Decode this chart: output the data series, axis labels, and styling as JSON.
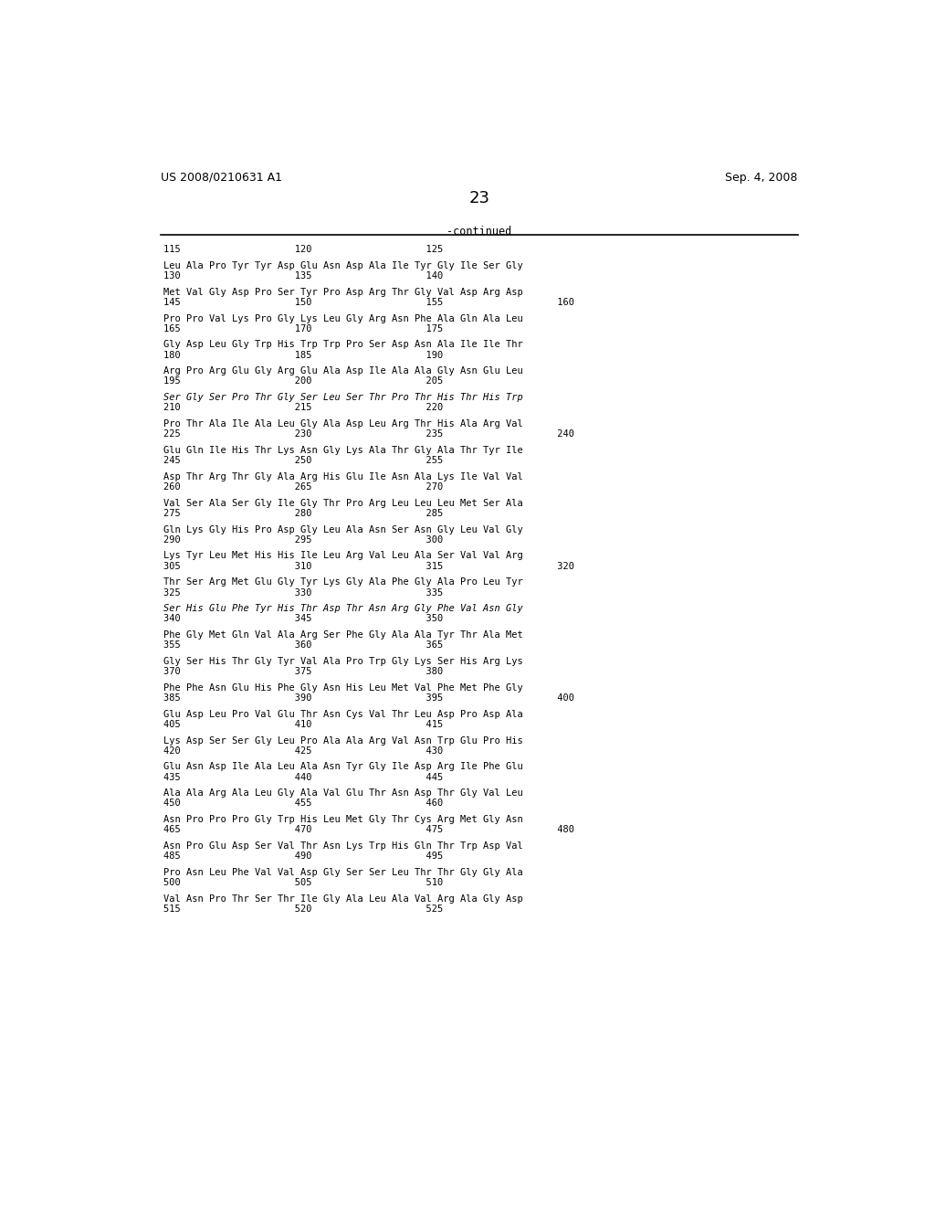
{
  "header_left": "US 2008/0210631 A1",
  "header_right": "Sep. 4, 2008",
  "page_number": "23",
  "continued_label": "-continued",
  "background_color": "#ffffff",
  "text_color": "#000000",
  "font_size": 7.5,
  "mono_font": "DejaVu Sans Mono",
  "content_blocks": [
    {
      "seq": "115                    120                    125",
      "num": null
    },
    {
      "seq": "Leu Ala Pro Tyr Tyr Asp Glu Asn Asp Ala Ile Tyr Gly Ile Ser Gly",
      "num": "130                    135                    140"
    },
    {
      "seq": "Met Val Gly Asp Pro Ser Tyr Pro Asp Arg Thr Gly Val Asp Arg Asp",
      "num": "145                    150                    155                    160"
    },
    {
      "seq": "Pro Pro Val Lys Pro Gly Lys Leu Gly Arg Asn Phe Ala Gln Ala Leu",
      "num": "165                    170                    175"
    },
    {
      "seq": "Gly Asp Leu Gly Trp His Trp Trp Pro Ser Asp Asn Ala Ile Ile Thr",
      "num": "180                    185                    190"
    },
    {
      "seq": "Arg Pro Arg Glu Gly Arg Glu Ala Asp Ile Ala Ala Gly Asn Glu Leu",
      "num": "195                    200                    205"
    },
    {
      "seq": "Ser Gly Ser Pro Thr Gly Ser Leu Ser Thr Pro Thr His Thr His Trp",
      "num": "210                    215                    220",
      "italic": true
    },
    {
      "seq": "Pro Thr Ala Ile Ala Leu Gly Ala Asp Leu Arg Thr His Ala Arg Val",
      "num": "225                    230                    235                    240"
    },
    {
      "seq": "Glu Gln Ile His Thr Lys Asn Gly Lys Ala Thr Gly Ala Thr Tyr Ile",
      "num": "245                    250                    255"
    },
    {
      "seq": "Asp Thr Arg Thr Gly Ala Arg His Glu Ile Asn Ala Lys Ile Val Val",
      "num": "260                    265                    270"
    },
    {
      "seq": "Val Ser Ala Ser Gly Ile Gly Thr Pro Arg Leu Leu Leu Met Ser Ala",
      "num": "275                    280                    285"
    },
    {
      "seq": "Gln Lys Gly His Pro Asp Gly Leu Ala Asn Ser Asn Gly Leu Val Gly",
      "num": "290                    295                    300"
    },
    {
      "seq": "Lys Tyr Leu Met His His Ile Leu Arg Val Leu Ala Ser Val Val Arg",
      "num": "305                    310                    315                    320"
    },
    {
      "seq": "Thr Ser Arg Met Glu Gly Tyr Lys Gly Ala Phe Gly Ala Pro Leu Tyr",
      "num": "325                    330                    335"
    },
    {
      "seq": "Ser His Glu Phe Tyr His Thr Asp Thr Asn Arg Gly Phe Val Asn Gly",
      "num": "340                    345                    350",
      "italic": true
    },
    {
      "seq": "Phe Gly Met Gln Val Ala Arg Ser Phe Gly Ala Ala Tyr Thr Ala Met",
      "num": "355                    360                    365"
    },
    {
      "seq": "Gly Ser His Thr Gly Tyr Val Ala Pro Trp Gly Lys Ser His Arg Lys",
      "num": "370                    375                    380"
    },
    {
      "seq": "Phe Phe Asn Glu His Phe Gly Asn His Leu Met Val Phe Met Phe Gly",
      "num": "385                    390                    395                    400"
    },
    {
      "seq": "Glu Asp Leu Pro Val Glu Thr Asn Cys Val Thr Leu Asp Pro Asp Ala",
      "num": "405                    410                    415"
    },
    {
      "seq": "Lys Asp Ser Ser Gly Leu Pro Ala Ala Arg Val Asn Trp Glu Pro His",
      "num": "420                    425                    430"
    },
    {
      "seq": "Glu Asn Asp Ile Ala Leu Ala Asn Tyr Gly Ile Asp Arg Ile Phe Glu",
      "num": "435                    440                    445"
    },
    {
      "seq": "Ala Ala Arg Ala Leu Gly Ala Val Glu Thr Asn Asp Thr Gly Val Leu",
      "num": "450                    455                    460"
    },
    {
      "seq": "Asn Pro Pro Pro Gly Trp His Leu Met Gly Thr Cys Arg Met Gly Asn",
      "num": "465                    470                    475                    480"
    },
    {
      "seq": "Asn Pro Glu Asp Ser Val Thr Asn Lys Trp His Gln Thr Trp Asp Val",
      "num": "485                    490                    495"
    },
    {
      "seq": "Pro Asn Leu Phe Val Val Asp Gly Ser Ser Leu Thr Thr Gly Gly Ala",
      "num": "500                    505                    510"
    },
    {
      "seq": "Val Asn Pro Thr Ser Thr Ile Gly Ala Leu Ala Val Arg Ala Gly Asp",
      "num": "515                    520                    525"
    }
  ]
}
